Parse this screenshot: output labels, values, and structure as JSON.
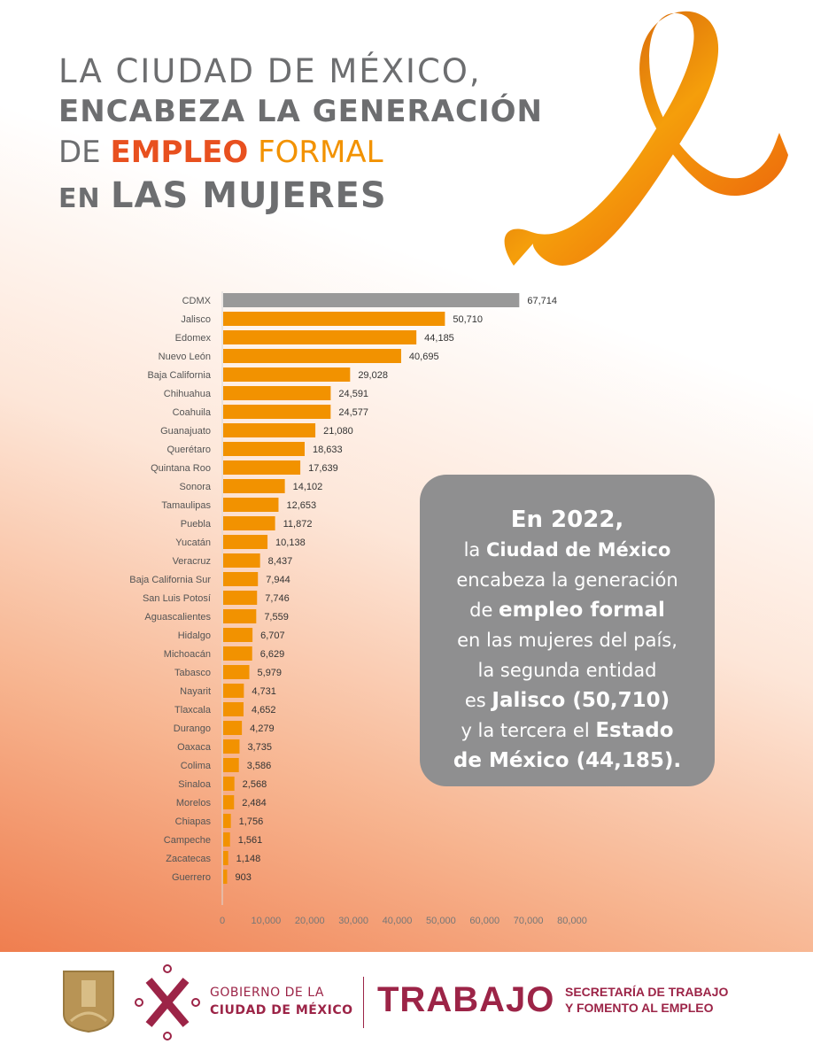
{
  "title": {
    "line1": "LA CIUDAD DE MÉXICO,",
    "line2": "ENCABEZA LA GENERACIÓN",
    "line3_pre": "DE ",
    "line3_highlight1": "EMPLEO",
    "line3_highlight2": " FORMAL",
    "line4_pre": "EN ",
    "line4_main": "LAS MUJERES"
  },
  "colors": {
    "highlight_bar": "#999999",
    "bar": "#f29200",
    "title_gray": "#6d6e70",
    "title_red": "#e8501f",
    "brand": "#9c2447",
    "callout_bg": "#8f8f90"
  },
  "chart_data": {
    "type": "bar",
    "orientation": "horizontal",
    "categories": [
      "CDMX",
      "Jalisco",
      "Edomex",
      "Nuevo León",
      "Baja California",
      "Chihuahua",
      "Coahuila",
      "Guanajuato",
      "Querétaro",
      "Quintana Roo",
      "Sonora",
      "Tamaulipas",
      "Puebla",
      "Yucatán",
      "Veracruz",
      "Baja California Sur",
      "San Luis Potosí",
      "Aguascalientes",
      "Hidalgo",
      "Michoacán",
      "Tabasco",
      "Nayarit",
      "Tlaxcala",
      "Durango",
      "Oaxaca",
      "Colima",
      "Sinaloa",
      "Morelos",
      "Chiapas",
      "Campeche",
      "Zacatecas",
      "Guerrero"
    ],
    "values": [
      67714,
      50710,
      44185,
      40695,
      29028,
      24591,
      24577,
      21080,
      18633,
      17639,
      14102,
      12653,
      11872,
      10138,
      8437,
      7944,
      7746,
      7559,
      6707,
      6629,
      5979,
      4731,
      4652,
      4279,
      3735,
      3586,
      2568,
      2484,
      1756,
      1561,
      1148,
      903
    ],
    "value_labels": [
      "67,714",
      "50,710",
      "44,185",
      "40,695",
      "29,028",
      "24,591",
      "24,577",
      "21,080",
      "18,633",
      "17,639",
      "14,102",
      "12,653",
      "11,872",
      "10,138",
      "8,437",
      "7,944",
      "7,746",
      "7,559",
      "6,707",
      "6,629",
      "5,979",
      "4,731",
      "4,652",
      "4,279",
      "3,735",
      "3,586",
      "2,568",
      "2,484",
      "1,756",
      "1,561",
      "1,148",
      "903"
    ],
    "xlim": [
      0,
      80000
    ],
    "xticks": [
      "0",
      "10,000",
      "20,000",
      "30,000",
      "40,000",
      "50,000",
      "60,000",
      "70,000",
      "80,000"
    ],
    "grid": false,
    "highlighted_category": "CDMX"
  },
  "callout": {
    "year": "En 2022,",
    "l2_pre": "la ",
    "l2_bold": "Ciudad de México",
    "l3": "encabeza la generación",
    "l4_pre": "de ",
    "l4_bold": "empleo formal",
    "l5": "en las mujeres del país,",
    "l6": "la segunda entidad",
    "l7_pre": "es ",
    "l7_bold": "Jalisco (50,710)",
    "l8_pre": "y la tercera el ",
    "l8_bold": "Estado",
    "l9_bold": "de México (44,185)."
  },
  "footer": {
    "gob_line1": "GOBIERNO DE LA",
    "gob_line2": "CIUDAD DE MÉXICO",
    "trabajo": "TRABAJO",
    "sec_line1": "SECRETARÍA DE TRABAJO",
    "sec_line2": "Y FOMENTO AL EMPLEO"
  }
}
